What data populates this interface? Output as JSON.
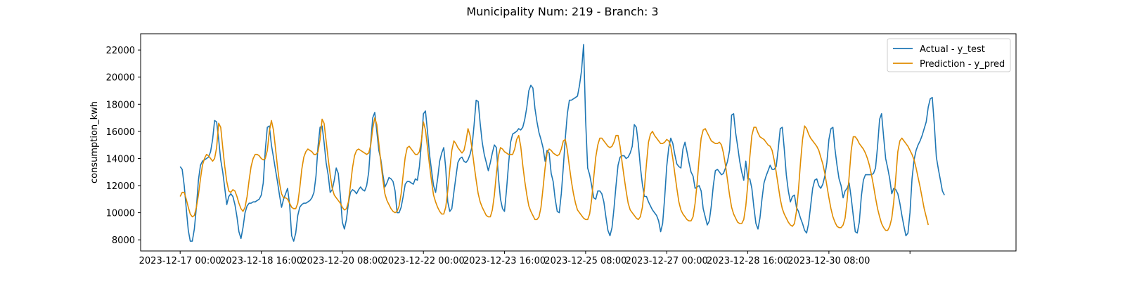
{
  "chart_data": {
    "type": "line",
    "title": "Municipality Num: 219 - Branch: 3",
    "xlabel": "",
    "ylabel": "consumption_kwh",
    "x_start": "2023-12-17 00:00",
    "x_step_hours": 1,
    "xlim_hours": [
      -19.5,
      412.3
    ],
    "ylim": [
      7180,
      23200
    ],
    "x_ticks": [
      {
        "hours": 0,
        "label": "2023-12-17 00:00"
      },
      {
        "hours": 40,
        "label": "2023-12-18 16:00"
      },
      {
        "hours": 80,
        "label": "2023-12-20 08:00"
      },
      {
        "hours": 120,
        "label": "2023-12-22 00:00"
      },
      {
        "hours": 160,
        "label": "2023-12-23 16:00"
      },
      {
        "hours": 200,
        "label": "2023-12-25 08:00"
      },
      {
        "hours": 240,
        "label": "2023-12-27 00:00"
      },
      {
        "hours": 280,
        "label": "2023-12-28 16:00"
      },
      {
        "hours": 320,
        "label": "2023-12-30 08:00"
      },
      {
        "hours": 360,
        "label": ""
      }
    ],
    "y_ticks": [
      8000,
      10000,
      12000,
      14000,
      16000,
      18000,
      20000,
      22000
    ],
    "grid": false,
    "legend_position": "top-right",
    "series": [
      {
        "name": "Actual - y_test",
        "color": "#1f77b4",
        "values": [
          13400,
          13200,
          12000,
          10300,
          8700,
          7900,
          7900,
          8800,
          10400,
          12400,
          13500,
          13800,
          13900,
          14000,
          14100,
          14500,
          15400,
          16800,
          16700,
          15400,
          13900,
          13000,
          11800,
          10600,
          11200,
          11400,
          11200,
          10600,
          9700,
          8600,
          8100,
          8900,
          10000,
          10500,
          10700,
          10700,
          10800,
          10800,
          10900,
          11000,
          11300,
          12200,
          14600,
          16300,
          16400,
          15000,
          14100,
          13200,
          12300,
          11300,
          10400,
          11000,
          11400,
          11800,
          10600,
          8300,
          7900,
          8500,
          9800,
          10400,
          10600,
          10700,
          10700,
          10800,
          10900,
          11100,
          11500,
          12700,
          14900,
          16300,
          16400,
          15200,
          13700,
          12800,
          11500,
          11700,
          12400,
          13300,
          12900,
          11300,
          9300,
          8800,
          9500,
          10700,
          11500,
          11700,
          11600,
          11400,
          11700,
          11900,
          11700,
          11600,
          12000,
          13000,
          15200,
          17000,
          17400,
          16000,
          14600,
          13900,
          12800,
          11900,
          12200,
          12600,
          12500,
          12300,
          11600,
          10000,
          10000,
          10400,
          11200,
          12100,
          12300,
          12300,
          12200,
          12100,
          12500,
          12400,
          13400,
          15100,
          17300,
          17500,
          16000,
          14300,
          13100,
          12000,
          11500,
          12500,
          13800,
          14400,
          14800,
          13300,
          10800,
          10100,
          10300,
          11500,
          12600,
          13700,
          14000,
          14100,
          13800,
          13700,
          13900,
          14300,
          14900,
          16500,
          18300,
          18200,
          16600,
          15200,
          14300,
          13700,
          13100,
          13700,
          14400,
          15000,
          14800,
          12600,
          11000,
          10300,
          10100,
          11700,
          13600,
          15200,
          15800,
          15900,
          16000,
          16200,
          16100,
          16300,
          16900,
          17800,
          19000,
          19400,
          19200,
          17700,
          16700,
          15900,
          15400,
          14800,
          13800,
          14600,
          14400,
          12900,
          12300,
          11000,
          10100,
          10000,
          11400,
          13400,
          15500,
          17300,
          18300,
          18300,
          18400,
          18500,
          18600,
          19400,
          20500,
          22400,
          16800,
          13300,
          12800,
          12000,
          11100,
          11000,
          11600,
          11600,
          11400,
          10800,
          9700,
          8700,
          8300,
          8900,
          10300,
          12000,
          13500,
          14100,
          14200,
          14200,
          14000,
          14100,
          14400,
          14900,
          16500,
          16300,
          15100,
          13400,
          12100,
          11200,
          11200,
          10800,
          10500,
          10200,
          10000,
          9800,
          9400,
          8600,
          9200,
          11100,
          13400,
          14800,
          15500,
          15100,
          14300,
          13600,
          13400,
          13300,
          14700,
          15200,
          14500,
          13700,
          13000,
          12700,
          11800,
          11900,
          12000,
          11600,
          10300,
          9700,
          9100,
          9400,
          10500,
          12000,
          13100,
          13200,
          13000,
          12800,
          12900,
          13300,
          13800,
          14600,
          17200,
          17300,
          15900,
          14900,
          13800,
          13000,
          12400,
          13800,
          12500,
          12500,
          11800,
          10400,
          9200,
          8800,
          9600,
          11000,
          12200,
          12700,
          13100,
          13500,
          13200,
          13200,
          13400,
          14700,
          16200,
          16300,
          14700,
          12800,
          11600,
          10800,
          11200,
          11300,
          10400,
          10100,
          9600,
          9200,
          8700,
          8500,
          9200,
          10500,
          11800,
          12400,
          12500,
          12000,
          11800,
          12100,
          12700,
          13700,
          15400,
          16200,
          16300,
          14700,
          13500,
          12500,
          12000,
          11100,
          11600,
          11800,
          12200,
          11100,
          9800,
          8600,
          8500,
          9300,
          11200,
          12400,
          12800,
          12800,
          12800,
          12800,
          12900,
          13300,
          14900,
          16900,
          17300,
          15600,
          14000,
          13300,
          12500,
          11400,
          11800,
          11700,
          11400,
          10700,
          9800,
          9000,
          8300,
          8500,
          10000,
          12500,
          13900,
          14600,
          15000,
          15300,
          15700,
          16200,
          16700,
          17800,
          18400,
          18500,
          16500,
          14100,
          13200,
          12400,
          11600,
          11300
        ]
      },
      {
        "name": "Prediction - y_pred",
        "color": "#e08c00",
        "values": [
          11200,
          11500,
          11500,
          11000,
          10400,
          9900,
          9700,
          9800,
          10400,
          11300,
          12500,
          13500,
          14000,
          14300,
          14200,
          14000,
          13800,
          14000,
          14800,
          16600,
          16300,
          14800,
          13400,
          12300,
          11600,
          11500,
          11700,
          11600,
          11200,
          10700,
          10300,
          10100,
          10400,
          11200,
          12400,
          13400,
          14000,
          14300,
          14300,
          14200,
          14000,
          13900,
          14000,
          14600,
          16000,
          16800,
          16100,
          14800,
          13400,
          12200,
          11400,
          11100,
          11100,
          11000,
          10700,
          10400,
          10300,
          10300,
          10700,
          11800,
          13200,
          14100,
          14500,
          14700,
          14600,
          14500,
          14300,
          14300,
          14500,
          15400,
          16900,
          16600,
          15300,
          14000,
          12800,
          11800,
          11300,
          11100,
          10900,
          10700,
          10400,
          10200,
          10300,
          10800,
          12000,
          13300,
          14200,
          14600,
          14700,
          14600,
          14500,
          14400,
          14300,
          14400,
          15000,
          16200,
          17000,
          16500,
          15100,
          13700,
          12400,
          11400,
          10900,
          10600,
          10300,
          10100,
          10000,
          10100,
          10500,
          11400,
          12800,
          14100,
          14800,
          14900,
          14700,
          14500,
          14300,
          14300,
          14500,
          15300,
          16700,
          16100,
          14800,
          13500,
          12300,
          11300,
          10800,
          10400,
          10100,
          9900,
          9900,
          10400,
          11600,
          13200,
          14600,
          15300,
          15100,
          14800,
          14600,
          14400,
          14600,
          15300,
          16200,
          15700,
          14700,
          13500,
          12400,
          11400,
          10800,
          10400,
          10100,
          9800,
          9700,
          9700,
          10200,
          11300,
          12900,
          14200,
          14800,
          14700,
          14500,
          14400,
          14300,
          14300,
          14300,
          14700,
          15400,
          15700,
          14900,
          13500,
          12300,
          11300,
          10500,
          10100,
          9800,
          9500,
          9500,
          9700,
          10400,
          11800,
          13300,
          14400,
          14700,
          14600,
          14400,
          14300,
          14200,
          14300,
          14700,
          15300,
          15400,
          14600,
          13400,
          12300,
          11400,
          10700,
          10200,
          10000,
          9800,
          9600,
          9500,
          9500,
          9900,
          11000,
          12600,
          14100,
          15000,
          15500,
          15500,
          15300,
          15100,
          14900,
          14800,
          14900,
          15200,
          15700,
          15700,
          14900,
          13700,
          12600,
          11600,
          10700,
          10200,
          10000,
          9800,
          9600,
          9500,
          9700,
          10400,
          11800,
          13600,
          15200,
          15800,
          16000,
          15700,
          15500,
          15300,
          15100,
          15100,
          15200,
          15400,
          15300,
          14900,
          14000,
          12900,
          11800,
          10800,
          10200,
          9900,
          9700,
          9500,
          9400,
          9400,
          9700,
          10700,
          12200,
          14000,
          15500,
          16100,
          16200,
          15900,
          15600,
          15300,
          15200,
          15100,
          15100,
          15200,
          15000,
          14400,
          13500,
          12400,
          11300,
          10400,
          9900,
          9600,
          9300,
          9200,
          9200,
          9500,
          10500,
          12100,
          14100,
          15700,
          16300,
          16300,
          15900,
          15600,
          15500,
          15400,
          15200,
          15000,
          14900,
          14600,
          13900,
          13000,
          12000,
          11000,
          10300,
          9900,
          9600,
          9300,
          9100,
          9000,
          9200,
          10100,
          11700,
          13700,
          15400,
          16400,
          16200,
          15800,
          15500,
          15300,
          15100,
          14900,
          14600,
          14100,
          13600,
          12900,
          12000,
          11100,
          10300,
          9700,
          9300,
          9000,
          8900,
          8900,
          9100,
          9600,
          10900,
          12700,
          14600,
          15600,
          15600,
          15400,
          15100,
          14900,
          14700,
          14400,
          14000,
          13500,
          12800,
          12000,
          11100,
          10300,
          9700,
          9200,
          8900,
          8700,
          8700,
          9000,
          9600,
          10800,
          12600,
          14500,
          15300,
          15500,
          15300,
          15100,
          14900,
          14600,
          14300,
          13900,
          13300,
          12600,
          11900,
          11100,
          10300,
          9700,
          9100
        ]
      }
    ]
  }
}
